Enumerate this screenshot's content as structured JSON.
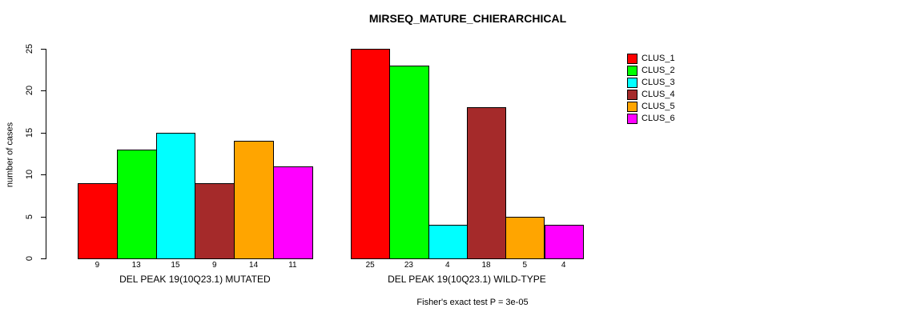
{
  "chart_data": {
    "type": "bar",
    "title": "MIRSEQ_MATURE_CHIERARCHICAL",
    "ylabel": "number of cases",
    "xlabel": "",
    "ylim": [
      0,
      25
    ],
    "yticks": [
      0,
      5,
      10,
      15,
      20,
      25
    ],
    "grid": false,
    "legend_position": "right",
    "categories": [
      "DEL PEAK 19(10Q23.1) MUTATED",
      "DEL PEAK 19(10Q23.1) WILD-TYPE"
    ],
    "series": [
      {
        "name": "CLUS_1",
        "color": "#FF0000",
        "values": [
          9,
          25
        ]
      },
      {
        "name": "CLUS_2",
        "color": "#00FF00",
        "values": [
          13,
          23
        ]
      },
      {
        "name": "CLUS_3",
        "color": "#00FFFF",
        "values": [
          15,
          4
        ]
      },
      {
        "name": "CLUS_4",
        "color": "#A52A2A",
        "values": [
          9,
          18
        ]
      },
      {
        "name": "CLUS_5",
        "color": "#FFA500",
        "values": [
          14,
          5
        ]
      },
      {
        "name": "CLUS_6",
        "color": "#FF00FF",
        "values": [
          11,
          4
        ]
      }
    ],
    "bar_value_labels": [
      [
        9,
        13,
        15,
        9,
        14,
        11
      ],
      [
        25,
        23,
        4,
        18,
        5,
        4
      ]
    ],
    "annotation": "Fisher's exact test P = 3e-05"
  }
}
